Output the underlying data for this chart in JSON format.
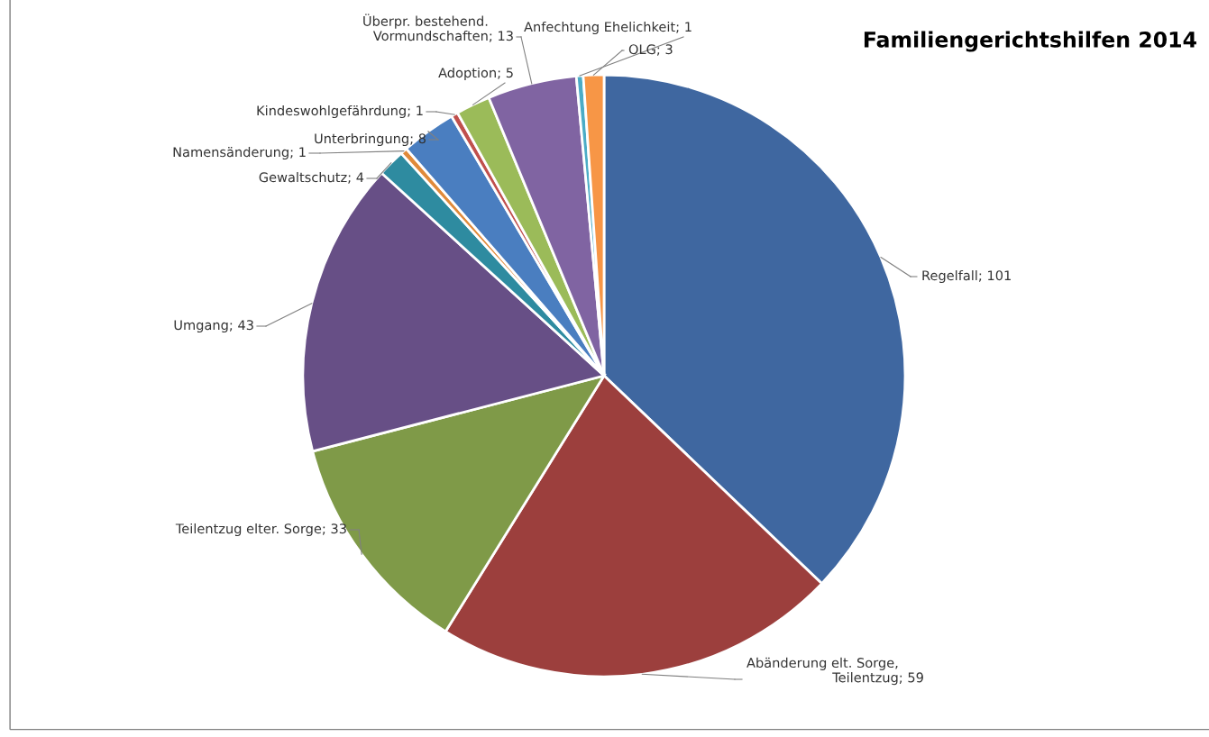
{
  "chart_data": {
    "type": "pie",
    "title": "Familiengerichtshilfen 2014",
    "categories": [
      "Regelfall",
      "Abänderung elt. Sorge, Teilentzug",
      "Teilentzug elter. Sorge",
      "Umgang",
      "Gewaltschutz",
      "Namensänderung",
      "Unterbringung",
      "Kindeswohlgefährdung",
      "Adoption",
      "Überpr. bestehend. Vormundschaften",
      "Anfechtung Ehelichkeit",
      "OLG"
    ],
    "values": [
      101,
      59,
      33,
      43,
      4,
      1,
      8,
      1,
      5,
      13,
      1,
      3
    ],
    "colors": [
      "#3f67a0",
      "#9c3f3d",
      "#7f9a48",
      "#674f86",
      "#2e8ba0",
      "#e08a3a",
      "#4a7ec0",
      "#c0504d",
      "#9bbb59",
      "#8064a2",
      "#4bacc6",
      "#f79646"
    ],
    "value_labels": [
      "; 101",
      "; 59",
      "; 33",
      "; 43",
      "; 4",
      "; 1",
      "; 8",
      "; 1",
      "; 5",
      "; 13",
      "; 1",
      "; 3"
    ],
    "legend": false
  }
}
